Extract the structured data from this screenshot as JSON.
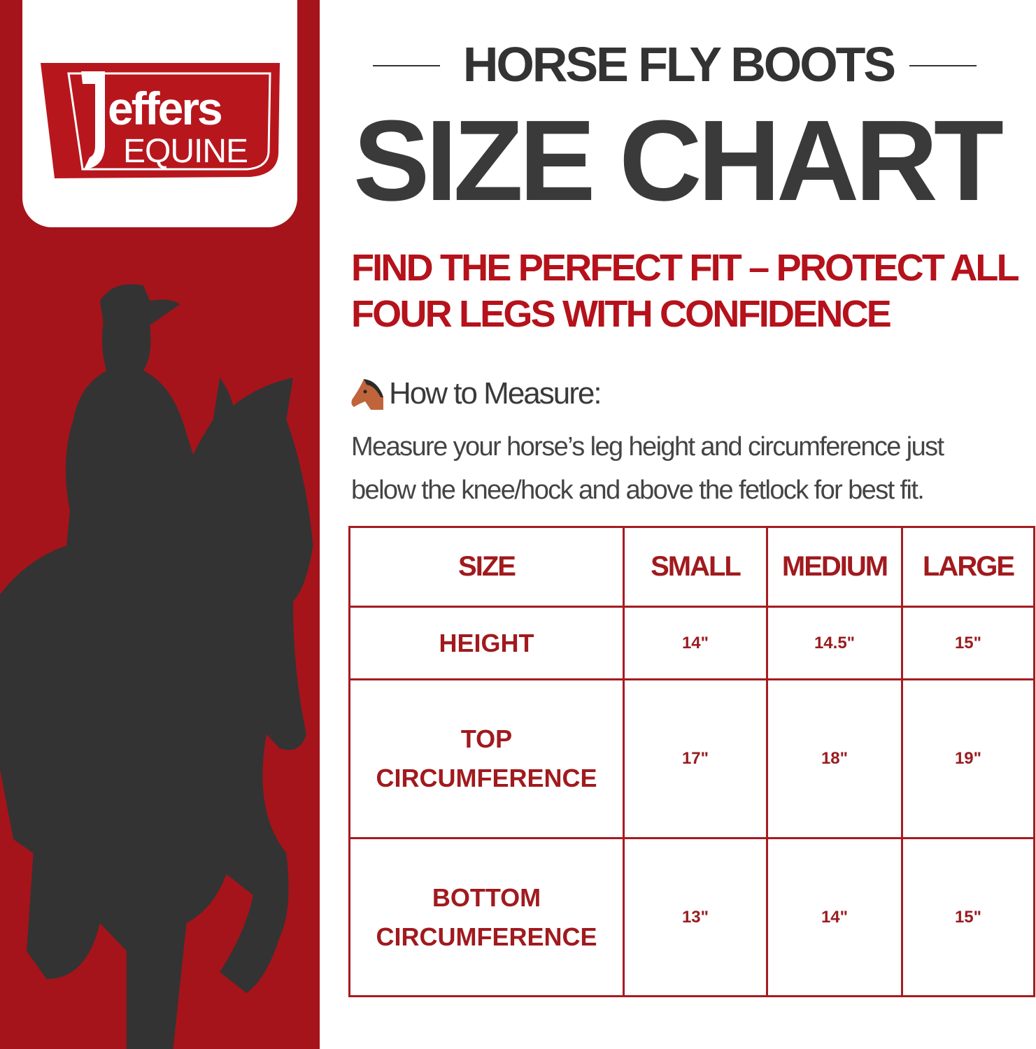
{
  "brand": {
    "logo_text": "jeffers",
    "logo_subtext": "EQUINE",
    "color": "#a5141a"
  },
  "header": {
    "title": "HORSE FLY BOOTS",
    "headline": "SIZE CHART",
    "subtitle_lines": [
      "FIND THE PERFECT FIT – PROTECT ALL",
      "FOUR LEGS WITH CONFIDENCE"
    ]
  },
  "measure": {
    "icon": "horse-face-icon",
    "heading": "How to Measure:",
    "lines": [
      "Measure your horse’s leg height and circumference just",
      "below the knee/hock and above the fetlock for best fit."
    ]
  },
  "table": {
    "headers": [
      "SIZE",
      "SMALL",
      "MEDIUM",
      "LARGE"
    ],
    "rows": [
      {
        "label": "HEIGHT",
        "values": [
          "14\"",
          "14.5\"",
          "15\""
        ]
      },
      {
        "label_lines": [
          "TOP",
          "CIRCUMFERENCE"
        ],
        "values": [
          "17\"",
          "18\"",
          "19\""
        ]
      },
      {
        "label_lines": [
          "BOTTOM",
          "CIRCUMFERENCE"
        ],
        "values": [
          "13\"",
          "14\"",
          "15\""
        ]
      }
    ]
  }
}
